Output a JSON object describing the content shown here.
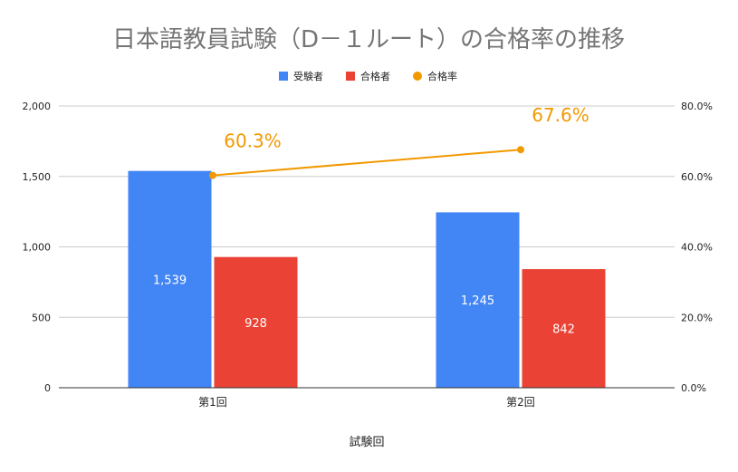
{
  "chart_data": {
    "type": "bar",
    "title": "日本語教員試験（D－１ルート）の合格率の推移",
    "xlabel": "試験回",
    "categories": [
      "第1回",
      "第2回"
    ],
    "series": [
      {
        "name": "受験者",
        "type": "bar",
        "axis": "left",
        "values": [
          1539,
          1245
        ],
        "labels": [
          "1,539",
          "1,245"
        ],
        "color": "#4285F4"
      },
      {
        "name": "合格者",
        "type": "bar",
        "axis": "left",
        "values": [
          928,
          842
        ],
        "labels": [
          "928",
          "842"
        ],
        "color": "#EA4335"
      },
      {
        "name": "合格率",
        "type": "line",
        "axis": "right",
        "values": [
          0.603,
          0.676
        ],
        "labels": [
          "60.3%",
          "67.6%"
        ],
        "color": "#F29900"
      }
    ],
    "ylim": [
      0,
      2000
    ],
    "y2lim": [
      0,
      0.8
    ],
    "yticks": [
      0,
      500,
      1000,
      1500,
      2000
    ],
    "ytick_labels": [
      "0",
      "500",
      "1,000",
      "1,500",
      "2,000"
    ],
    "y2ticks": [
      0,
      0.2,
      0.4,
      0.6,
      0.8
    ],
    "y2tick_labels": [
      "0.0%",
      "20.0%",
      "40.0%",
      "60.0%",
      "80.0%"
    ],
    "grid": true,
    "legend_position": "top"
  }
}
